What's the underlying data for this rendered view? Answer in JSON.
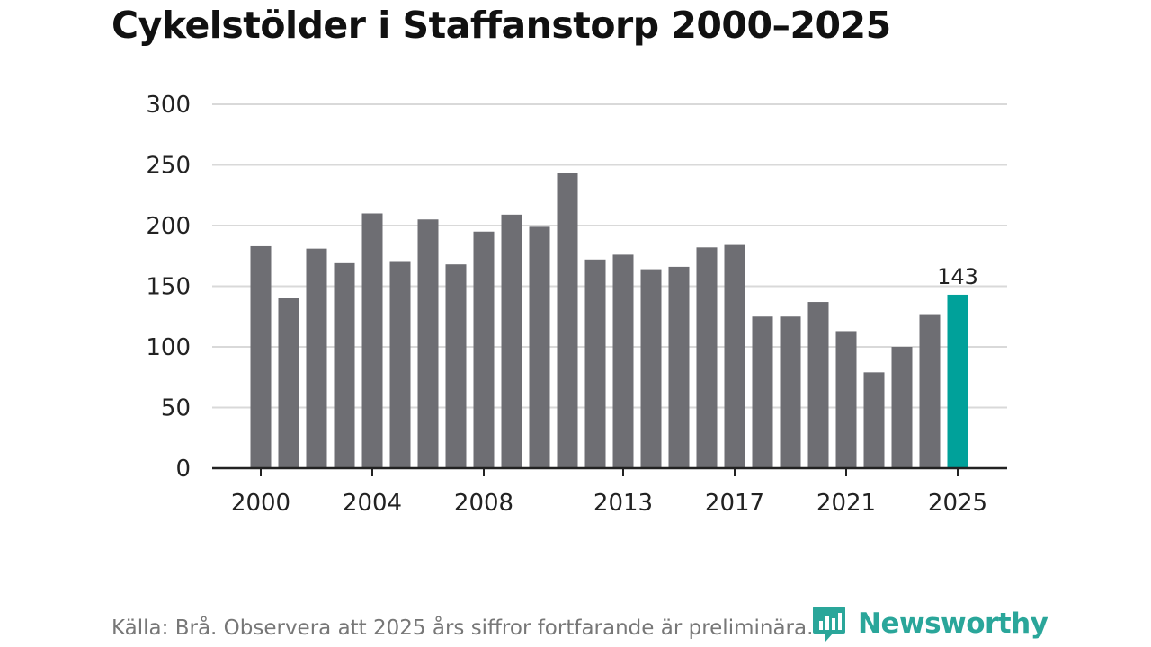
{
  "chart_data": {
    "type": "bar",
    "title": "Cykelstölder i Staffanstorp 2000–2025",
    "xlabel": "",
    "ylabel": "",
    "x": [
      2000,
      2001,
      2002,
      2003,
      2004,
      2005,
      2006,
      2007,
      2008,
      2009,
      2010,
      2011,
      2012,
      2013,
      2014,
      2015,
      2016,
      2017,
      2018,
      2019,
      2020,
      2021,
      2022,
      2023,
      2024,
      2025
    ],
    "values": [
      183,
      140,
      181,
      169,
      210,
      170,
      205,
      168,
      195,
      209,
      199,
      243,
      172,
      176,
      164,
      166,
      182,
      184,
      125,
      125,
      137,
      113,
      79,
      100,
      127,
      143
    ],
    "ylim": [
      0,
      300
    ],
    "yticks": [
      0,
      50,
      100,
      150,
      200,
      250,
      300
    ],
    "xticks": [
      2000,
      2004,
      2008,
      2013,
      2017,
      2021,
      2025
    ],
    "highlight": {
      "x": 2025,
      "label": "143"
    },
    "grid": true,
    "colors": {
      "bar": "#6e6e73",
      "highlight": "#00a19a",
      "grid": "#d9d9d9",
      "axis": "#222222"
    }
  },
  "footer": {
    "source": "Källa: Brå. Observera att 2025 års siffror fortfarande är preliminära.",
    "logo_text": "Newsworthy",
    "logo_icon": "newsworthy-logo-icon"
  }
}
